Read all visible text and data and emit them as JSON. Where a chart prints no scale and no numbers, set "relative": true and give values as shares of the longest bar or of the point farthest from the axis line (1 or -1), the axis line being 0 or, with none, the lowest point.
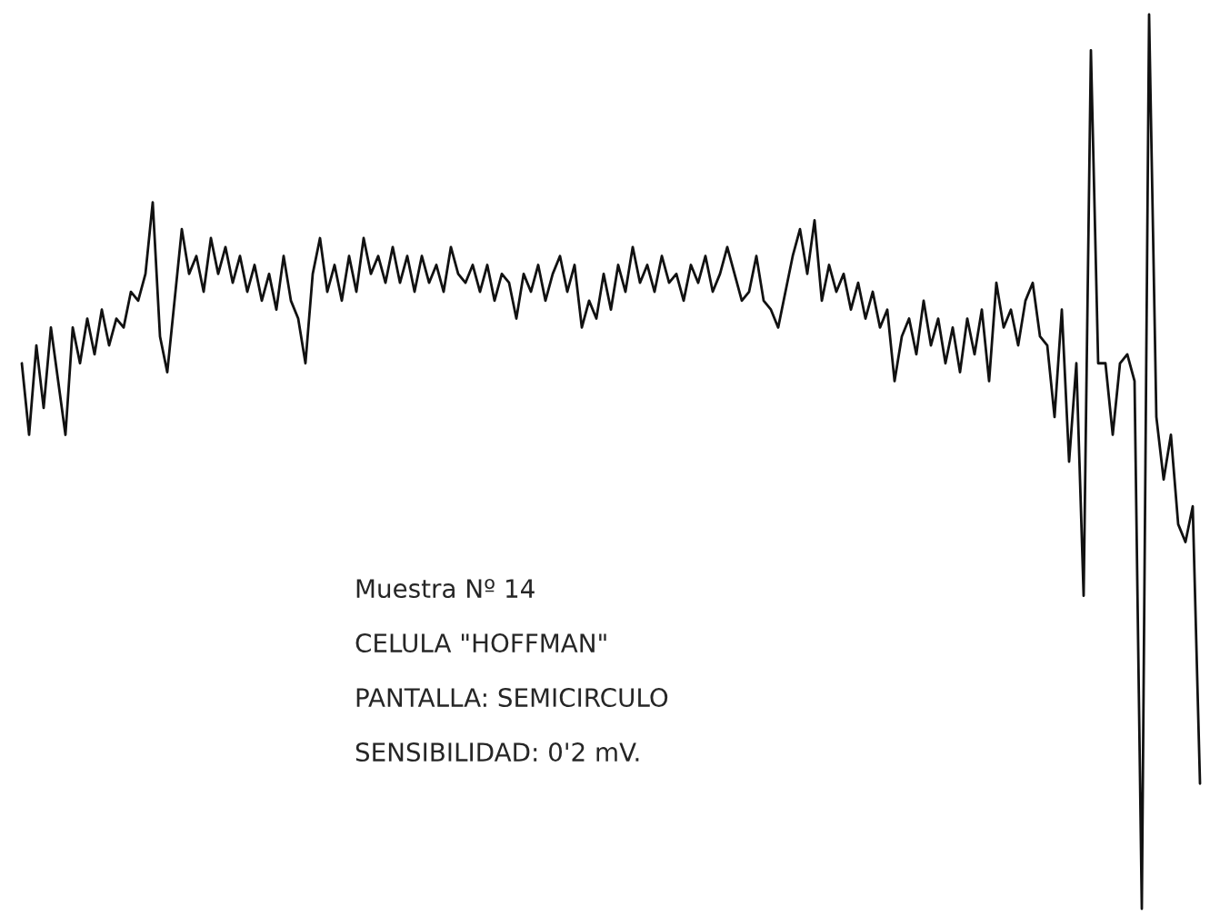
{
  "chart_data": {
    "type": "line",
    "relative": true,
    "color": "#111111",
    "categories": [
      null,
      null,
      null,
      null,
      null,
      null,
      null,
      null,
      null,
      null,
      null,
      null,
      null,
      null,
      null,
      null,
      null,
      null,
      null,
      null,
      null,
      null,
      null,
      null,
      null,
      null,
      null,
      null,
      null,
      null,
      null,
      null,
      null,
      null,
      null,
      null,
      null,
      null,
      null,
      null,
      null,
      null,
      null,
      null,
      null,
      null,
      null,
      null,
      null,
      null,
      null,
      null,
      null,
      null,
      null,
      null,
      null,
      null,
      null,
      null,
      null,
      null,
      null,
      null,
      null,
      null,
      null,
      null,
      null,
      null,
      null,
      null,
      null,
      null,
      null,
      null,
      null,
      null,
      null,
      null,
      null,
      null,
      null,
      null,
      null,
      null,
      null,
      null,
      null,
      null,
      null,
      null,
      null,
      null,
      null,
      null,
      null,
      null,
      null,
      null,
      null,
      null,
      null,
      null,
      null,
      null,
      null,
      null,
      null,
      null,
      null,
      null,
      null,
      null,
      null,
      null,
      null,
      null,
      null,
      null,
      null,
      null,
      null,
      null,
      null,
      null,
      null,
      null,
      null,
      null,
      null,
      null,
      null,
      null,
      null,
      null,
      null,
      null,
      null,
      null,
      null,
      null,
      null,
      null,
      null,
      null,
      null,
      null,
      null,
      null,
      null,
      null,
      null,
      null,
      null,
      null,
      null,
      null,
      null,
      null,
      null,
      null,
      null
    ],
    "values": [
      0.61,
      0.53,
      0.63,
      0.56,
      0.65,
      0.59,
      0.53,
      0.65,
      0.61,
      0.66,
      0.62,
      0.67,
      0.63,
      0.66,
      0.65,
      0.69,
      0.68,
      0.71,
      0.79,
      0.64,
      0.6,
      0.68,
      0.76,
      0.71,
      0.73,
      0.69,
      0.75,
      0.71,
      0.74,
      0.7,
      0.73,
      0.69,
      0.72,
      0.68,
      0.71,
      0.67,
      0.73,
      0.68,
      0.66,
      0.61,
      0.71,
      0.75,
      0.69,
      0.72,
      0.68,
      0.73,
      0.69,
      0.75,
      0.71,
      0.73,
      0.7,
      0.74,
      0.7,
      0.73,
      0.69,
      0.73,
      0.7,
      0.72,
      0.69,
      0.74,
      0.71,
      0.7,
      0.72,
      0.69,
      0.72,
      0.68,
      0.71,
      0.7,
      0.66,
      0.71,
      0.69,
      0.72,
      0.68,
      0.71,
      0.73,
      0.69,
      0.72,
      0.65,
      0.68,
      0.66,
      0.71,
      0.67,
      0.72,
      0.69,
      0.74,
      0.7,
      0.72,
      0.69,
      0.73,
      0.7,
      0.71,
      0.68,
      0.72,
      0.7,
      0.73,
      0.69,
      0.71,
      0.74,
      0.71,
      0.68,
      0.69,
      0.73,
      0.68,
      0.67,
      0.65,
      0.69,
      0.73,
      0.76,
      0.71,
      0.77,
      0.68,
      0.72,
      0.69,
      0.71,
      0.67,
      0.7,
      0.66,
      0.69,
      0.65,
      0.67,
      0.59,
      0.64,
      0.66,
      0.62,
      0.68,
      0.63,
      0.66,
      0.61,
      0.65,
      0.6,
      0.66,
      0.62,
      0.67,
      0.59,
      0.7,
      0.65,
      0.67,
      0.63,
      0.68,
      0.7,
      0.64,
      0.63,
      0.55,
      0.67,
      0.5,
      0.61,
      0.35,
      0.96,
      0.61,
      0.61,
      0.53,
      0.61,
      0.62,
      0.59,
      0,
      1,
      0.55,
      0.48,
      0.53,
      0.43,
      0.41,
      0.45,
      0.14
    ],
    "annotations": [
      "Muestra Nº 14",
      "CELULA \"HOFFMAN\"",
      "PANTALLA: SEMICIRCULO",
      "SENSIBILIDAD: 0'2 mV."
    ]
  }
}
